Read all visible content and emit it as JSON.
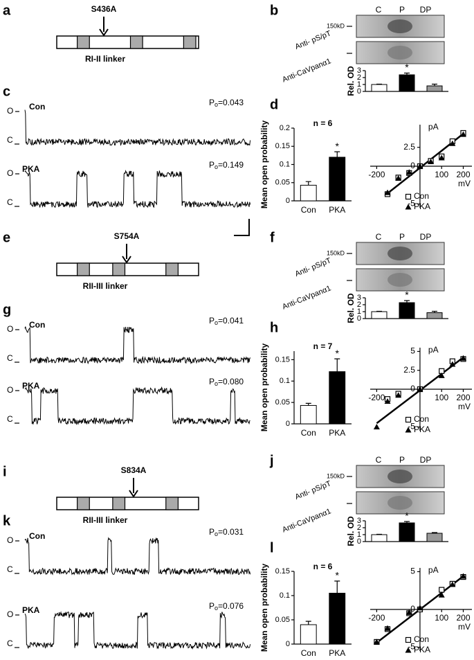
{
  "figure": {
    "groups": [
      {
        "letters": [
          "a",
          "b",
          "c",
          "d"
        ],
        "mutation": "S436A",
        "linker": "RI-II linker",
        "blot": {
          "lanes": [
            "C",
            "P",
            "DP"
          ],
          "marker": "150kD",
          "antibodies": [
            "Anti- pS/pT",
            "Anti-CaVpanα1"
          ]
        },
        "state_labels": [
          "O",
          "C"
        ],
        "traces": [
          {
            "condition": "Con",
            "po": {
              "symbol": "P",
              "subscript": "o",
              "text": "=0.043"
            }
          },
          {
            "condition": "PKA",
            "po": {
              "symbol": "P",
              "subscript": "o",
              "text": "=0.149"
            }
          }
        ]
      },
      {
        "letters": [
          "e",
          "f",
          "g",
          "h"
        ],
        "mutation": "S754A",
        "linker": "RII-III linker",
        "blot": {
          "lanes": [
            "C",
            "P",
            "DP"
          ],
          "marker": "150kD",
          "antibodies": [
            "Anti- pS/pT",
            "Anti-CaVpanα1"
          ]
        },
        "state_labels": [
          "O",
          "C"
        ],
        "traces": [
          {
            "condition": "Con",
            "po": {
              "symbol": "P",
              "subscript": "o",
              "text": "=0.041"
            }
          },
          {
            "condition": "PKA",
            "po": {
              "symbol": "P",
              "subscript": "o",
              "text": "=0.080"
            }
          }
        ]
      },
      {
        "letters": [
          "i",
          "j",
          "k",
          "l"
        ],
        "mutation": "S834A",
        "linker": "RII-III linker",
        "blot": {
          "lanes": [
            "C",
            "P",
            "DP"
          ],
          "marker": "150kD",
          "antibodies": [
            "Anti- pS/pT",
            "Anti-CaVpanα1"
          ]
        },
        "state_labels": [
          "O",
          "C"
        ],
        "traces": [
          {
            "condition": "Con",
            "po": {
              "symbol": "P",
              "subscript": "o",
              "text": "=0.031"
            }
          },
          {
            "condition": "PKA",
            "po": {
              "symbol": "P",
              "subscript": "o",
              "text": "=0.076"
            }
          }
        ]
      }
    ]
  },
  "chart_data": [
    {
      "type": "bar",
      "ylabel": "Rel. OD",
      "annotation": "*",
      "categories": [
        null,
        null,
        null
      ],
      "values": [
        1,
        2.4,
        0.8
      ],
      "errors": [
        0.05,
        0.25,
        0.25
      ],
      "colors": [
        "#ffffff",
        "#000000",
        "#999999"
      ],
      "ylim": [
        0,
        3
      ],
      "yticks": [
        0,
        1,
        2,
        3
      ]
    },
    {
      "type": "bar",
      "ylabel": "Mean open probability",
      "title": "n = 6",
      "annotation": "*",
      "categories": [
        "Con",
        "PKA"
      ],
      "values": [
        0.043,
        0.12
      ],
      "errors": [
        0.01,
        0.015
      ],
      "colors": [
        "#ffffff",
        "#000000"
      ],
      "ylim": [
        0,
        0.2
      ],
      "yticks": [
        0,
        0.05,
        0.1,
        0.15,
        0.2
      ]
    },
    {
      "type": "scatter",
      "xlabel": "mV",
      "ylabel": "pA",
      "xlim": [
        -230,
        240
      ],
      "xticks": [
        -200,
        100,
        200
      ],
      "ylim": [
        -5.5,
        5.5
      ],
      "yticks": [
        -5,
        0,
        2.5
      ],
      "series": [
        {
          "name": "Con",
          "marker": "square",
          "x": [
            -150,
            -100,
            -50,
            0,
            50,
            100,
            150,
            200
          ],
          "values": [
            -3.7,
            -1.5,
            -0.9,
            0,
            0.7,
            1.3,
            3.3,
            4.4
          ]
        },
        {
          "name": "PKA",
          "marker": "triangle",
          "x": [
            -150,
            -100,
            -50,
            0,
            50,
            100,
            150,
            200
          ],
          "values": [
            -3.5,
            -1.6,
            -0.8,
            0,
            0.6,
            1.1,
            3.0,
            4.2
          ]
        }
      ],
      "trendline": {
        "x": [
          -150,
          200
        ],
        "values": [
          -3.6,
          4.3
        ]
      }
    },
    {
      "type": "bar",
      "ylabel": "Rel. OD",
      "annotation": "*",
      "categories": [
        null,
        null,
        null
      ],
      "values": [
        1,
        2.3,
        0.85
      ],
      "errors": [
        0.05,
        0.3,
        0.2
      ],
      "colors": [
        "#ffffff",
        "#000000",
        "#999999"
      ],
      "ylim": [
        0,
        3
      ],
      "yticks": [
        0,
        1,
        2,
        3
      ]
    },
    {
      "type": "bar",
      "ylabel": "Mean open probability",
      "title": "n = 7",
      "annotation": "*",
      "categories": [
        "Con",
        "PKA"
      ],
      "values": [
        0.043,
        0.122
      ],
      "errors": [
        0.005,
        0.03
      ],
      "colors": [
        "#ffffff",
        "#000000"
      ],
      "ylim": [
        0,
        0.17
      ],
      "yticks": [
        0,
        0.05,
        0.1,
        0.15
      ]
    },
    {
      "type": "scatter",
      "xlabel": "mV",
      "ylabel": "pA",
      "xlim": [
        -230,
        240
      ],
      "xticks": [
        -200,
        100,
        200
      ],
      "ylim": [
        -5.5,
        5.5
      ],
      "yticks": [
        -5,
        0,
        2.5,
        5
      ],
      "series": [
        {
          "name": "Con",
          "marker": "square",
          "x": [
            -150,
            -100,
            0,
            100,
            150,
            200
          ],
          "values": [
            -1.3,
            -0.6,
            0,
            2.4,
            3.7,
            4.0
          ]
        },
        {
          "name": "PKA",
          "marker": "triangle",
          "x": [
            -200,
            -150,
            -100,
            0,
            100,
            150,
            200
          ],
          "values": [
            -5,
            -1.6,
            -0.8,
            0,
            1.8,
            3.3,
            4.1
          ]
        }
      ],
      "trendline": {
        "x": [
          -200,
          200
        ],
        "values": [
          -4.5,
          4.2
        ]
      }
    },
    {
      "type": "bar",
      "ylabel": "Rel. OD",
      "annotation": "*",
      "categories": [
        null,
        null,
        null
      ],
      "values": [
        1,
        2.7,
        1.2
      ],
      "errors": [
        0.05,
        0.2,
        0.1
      ],
      "colors": [
        "#ffffff",
        "#000000",
        "#999999"
      ],
      "ylim": [
        0,
        3
      ],
      "yticks": [
        0,
        1,
        2,
        3
      ]
    },
    {
      "type": "bar",
      "ylabel": "Mean open probability",
      "title": "n = 6",
      "annotation": "*",
      "categories": [
        "Con",
        "PKA"
      ],
      "values": [
        0.04,
        0.105
      ],
      "errors": [
        0.007,
        0.025
      ],
      "colors": [
        "#ffffff",
        "#000000"
      ],
      "ylim": [
        0,
        0.15
      ],
      "yticks": [
        0,
        0.05,
        0.1,
        0.15
      ]
    },
    {
      "type": "scatter",
      "xlabel": "mV",
      "ylabel": "pA",
      "xlim": [
        -230,
        240
      ],
      "xticks": [
        -200,
        100,
        200
      ],
      "ylim": [
        -5.5,
        5.5
      ],
      "yticks": [
        -5,
        0,
        5
      ],
      "series": [
        {
          "name": "Con",
          "marker": "square",
          "x": [
            -200,
            -150,
            -50,
            0,
            100,
            150,
            200
          ],
          "values": [
            -4.3,
            -2.6,
            -0.5,
            0,
            2.6,
            3.4,
            4.3
          ]
        },
        {
          "name": "PKA",
          "marker": "triangle",
          "x": [
            -200,
            -150,
            -50,
            0,
            100,
            150,
            200
          ],
          "values": [
            -4.3,
            -2.5,
            -0.4,
            0.2,
            1.9,
            3.3,
            4.4
          ]
        }
      ],
      "trendline": {
        "x": [
          -200,
          200
        ],
        "values": [
          -4.4,
          4.4
        ]
      }
    }
  ]
}
